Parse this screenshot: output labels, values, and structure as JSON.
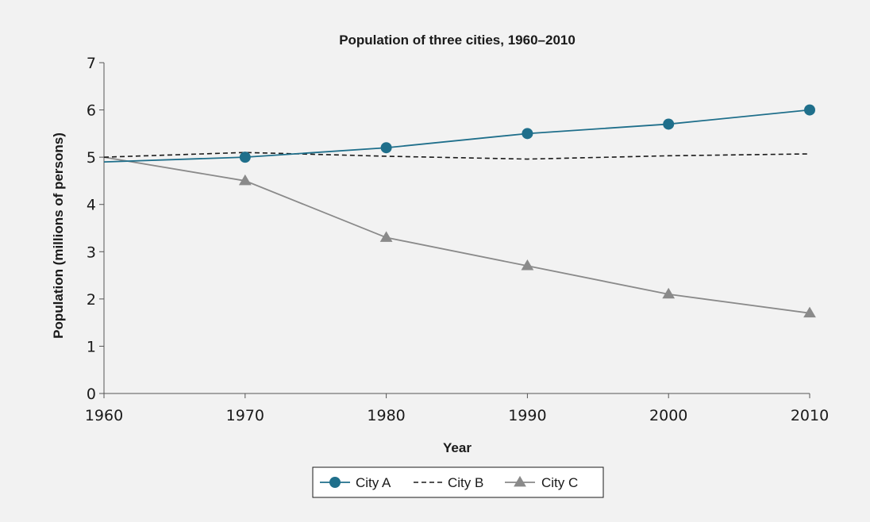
{
  "chart_data": {
    "type": "line",
    "title": "Population of three cities, 1960–2010",
    "xlabel": "Year",
    "ylabel": "Population (millions of persons)",
    "xlim": [
      1960,
      2010
    ],
    "ylim": [
      0,
      7
    ],
    "x_ticks": [
      1960,
      1970,
      1980,
      1990,
      2000,
      2010
    ],
    "y_ticks": [
      0,
      1,
      2,
      3,
      4,
      5,
      6,
      7
    ],
    "grid": false,
    "legend_position": "bottom-center",
    "series": [
      {
        "name": "City A",
        "color": "#1f6f8b",
        "line_style": "solid",
        "marker": "circle",
        "x": [
          1960,
          1970,
          1980,
          1990,
          2000,
          2010
        ],
        "y": [
          4.9,
          5.0,
          5.2,
          5.5,
          5.7,
          6.0
        ],
        "marker_x": [
          1970,
          1980,
          1990,
          2000,
          2010
        ]
      },
      {
        "name": "City B",
        "color": "#1a1a1a",
        "line_style": "dashed",
        "marker": "none",
        "x": [
          1960,
          1970,
          1980,
          1990,
          2000,
          2010
        ],
        "y": [
          5.0,
          5.1,
          5.02,
          4.96,
          5.03,
          5.07
        ],
        "marker_x": []
      },
      {
        "name": "City C",
        "color": "#8a8a8a",
        "line_style": "solid",
        "marker": "triangle",
        "x": [
          1960,
          1970,
          1980,
          1990,
          2000,
          2010
        ],
        "y": [
          5.0,
          4.5,
          3.3,
          2.7,
          2.1,
          1.7
        ],
        "marker_x": [
          1970,
          1980,
          1990,
          2000,
          2010
        ]
      }
    ]
  }
}
